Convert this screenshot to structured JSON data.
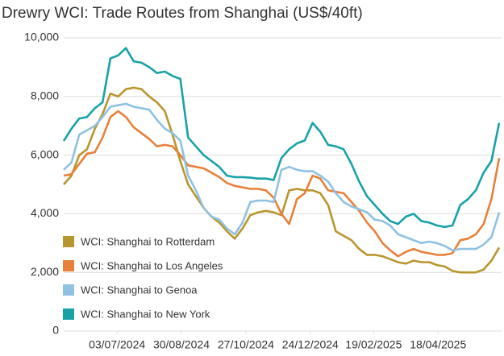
{
  "chart_data": {
    "type": "line",
    "title": "Drewry WCI: Trade Routes from Shanghai (US$/40ft)",
    "x": [
      "16/05/2024",
      "23/05/2024",
      "30/05/2024",
      "06/06/2024",
      "13/06/2024",
      "20/06/2024",
      "27/06/2024",
      "04/07/2024",
      "11/07/2024",
      "18/07/2024",
      "25/07/2024",
      "01/08/2024",
      "08/08/2024",
      "15/08/2024",
      "22/08/2024",
      "29/08/2024",
      "05/09/2024",
      "12/09/2024",
      "19/09/2024",
      "26/09/2024",
      "03/10/2024",
      "10/10/2024",
      "17/10/2024",
      "24/10/2024",
      "31/10/2024",
      "07/11/2024",
      "14/11/2024",
      "21/11/2024",
      "28/11/2024",
      "05/12/2024",
      "12/12/2024",
      "19/12/2024",
      "26/12/2024",
      "02/01/2025",
      "09/01/2025",
      "16/01/2025",
      "23/01/2025",
      "30/01/2025",
      "06/02/2025",
      "13/02/2025",
      "20/02/2025",
      "27/02/2025",
      "06/03/2025",
      "13/03/2025",
      "20/03/2025",
      "27/03/2025",
      "03/04/2025",
      "10/04/2025",
      "17/04/2025",
      "24/04/2025",
      "01/05/2025",
      "08/05/2025",
      "15/05/2025",
      "22/05/2025",
      "29/05/2025",
      "05/06/2025",
      "12/06/2025"
    ],
    "series": [
      {
        "name": "WCI: Shanghai to Rotterdam",
        "color": "#b8962e",
        "values": [
          5000,
          5300,
          6000,
          6200,
          6900,
          7400,
          8100,
          8000,
          8250,
          8300,
          8250,
          8000,
          7800,
          7500,
          6700,
          5800,
          5000,
          4600,
          4200,
          3900,
          3700,
          3400,
          3150,
          3500,
          3950,
          4050,
          4100,
          4050,
          3950,
          4800,
          4850,
          4800,
          4800,
          4700,
          4300,
          3400,
          3250,
          3100,
          2800,
          2600,
          2600,
          2550,
          2450,
          2350,
          2300,
          2400,
          2350,
          2350,
          2250,
          2200,
          2050,
          2000,
          2000,
          2000,
          2100,
          2400,
          2850
        ]
      },
      {
        "name": "WCI: Shanghai to Los Angeles",
        "color": "#e8803a",
        "values": [
          5300,
          5350,
          5700,
          6050,
          6100,
          6600,
          7300,
          7500,
          7300,
          6950,
          6750,
          6550,
          6300,
          6350,
          6300,
          6000,
          5650,
          5600,
          5550,
          5400,
          5250,
          5050,
          4950,
          4900,
          4850,
          4850,
          4800,
          4550,
          4000,
          3650,
          4500,
          4700,
          5300,
          5200,
          4800,
          4750,
          4700,
          4400,
          4100,
          3700,
          3400,
          3000,
          2750,
          2550,
          2700,
          2800,
          2700,
          2650,
          2600,
          2600,
          2650,
          3100,
          3150,
          3300,
          3650,
          4500,
          5900
        ]
      },
      {
        "name": "WCI: Shanghai to Genoa",
        "color": "#8fc1e3",
        "values": [
          5500,
          5750,
          6700,
          6850,
          7000,
          7300,
          7650,
          7700,
          7750,
          7650,
          7600,
          7550,
          7200,
          6900,
          6750,
          6500,
          5300,
          4800,
          4200,
          3900,
          3800,
          3500,
          3300,
          3700,
          4400,
          4450,
          4450,
          4400,
          5500,
          5600,
          5500,
          5450,
          5450,
          5300,
          5100,
          4700,
          4400,
          4250,
          4150,
          4050,
          3800,
          3750,
          3600,
          3300,
          3200,
          3100,
          3000,
          3050,
          3000,
          2900,
          2750,
          2800,
          2800,
          2800,
          2950,
          3200,
          4050
        ]
      },
      {
        "name": "WCI: Shanghai to New York",
        "color": "#17a2a8",
        "values": [
          6480,
          6900,
          7250,
          7300,
          7600,
          7800,
          9300,
          9400,
          9650,
          9200,
          9150,
          9000,
          8800,
          8850,
          8700,
          8600,
          6600,
          6300,
          6000,
          5800,
          5600,
          5300,
          5250,
          5250,
          5230,
          5200,
          5200,
          5150,
          5900,
          6200,
          6400,
          6500,
          7100,
          6800,
          6350,
          6300,
          6200,
          5700,
          5100,
          4600,
          4300,
          4000,
          3750,
          3650,
          3900,
          4000,
          3750,
          3700,
          3600,
          3550,
          3600,
          4300,
          4500,
          4800,
          5400,
          5800,
          7100
        ]
      }
    ],
    "xlim": [
      "16/05/2024",
      "12/06/2025"
    ],
    "xticks": [
      "03/07/2024",
      "30/08/2024",
      "27/10/2024",
      "24/12/2024",
      "19/02/2025",
      "18/04/2025"
    ],
    "ylim": [
      0,
      10000
    ],
    "yticks": [
      0,
      {
        "value": 2000,
        "label": "2,000"
      },
      {
        "value": 4000,
        "label": "4,000"
      },
      {
        "value": 6000,
        "label": "6,000"
      },
      {
        "value": 8000,
        "label": "8,000"
      },
      {
        "value": 10000,
        "label": "10,000"
      }
    ],
    "grid": true,
    "legend": "lower left"
  }
}
